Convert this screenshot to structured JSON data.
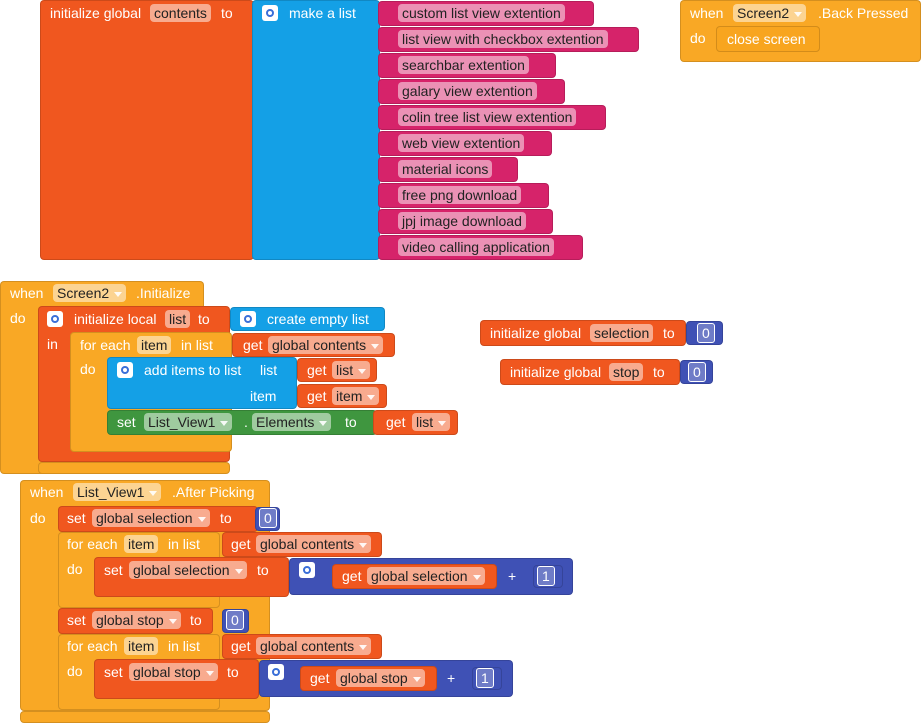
{
  "contents_block": {
    "keyword": "initialize global",
    "name": "contents",
    "to": "to",
    "list_keyword": "make a list",
    "items": [
      "custom list view extention",
      "list view with checkbox extention",
      "searchbar extention",
      "galary view extention",
      "colin tree list view extention",
      "web view extention",
      "material icons",
      "free png download",
      "jpj image download",
      "video calling application"
    ]
  },
  "back_pressed": {
    "when": "when",
    "component": "Screen2",
    "event": ".Back Pressed",
    "do": "do",
    "action": "close screen"
  },
  "screen_initialize": {
    "when": "when",
    "component": "Screen2",
    "event": ".Initialize",
    "do": "do",
    "local_keyword": "initialize local",
    "local_name": "list",
    "local_to": "to",
    "create": "create empty list",
    "in": "in",
    "for_each": "for each",
    "item_var": "item",
    "in_list": "in list",
    "get1": "get",
    "get1_var": "global contents",
    "loop_do": "do",
    "add_items": "add items to list",
    "list_socket": "list",
    "item_socket": "item",
    "get2": "get",
    "get2_var": "list",
    "get3": "get",
    "get3_var": "item",
    "set": "set",
    "set_component": "List_View1",
    "dot": ".",
    "set_property": "Elements",
    "set_to": "to",
    "get4": "get",
    "get4_var": "list"
  },
  "selection_block": {
    "keyword": "initialize global",
    "name": "selection",
    "to": "to",
    "value": 0
  },
  "stop_block": {
    "keyword": "initialize global",
    "name": "stop",
    "to": "to",
    "value": 0
  },
  "after_picking": {
    "when": "when",
    "component": "List_View1",
    "event": ".After Picking",
    "do": "do",
    "set1": "set",
    "set1_var": "global selection",
    "set1_to": "to",
    "set1_value": 0,
    "loop1_for_each": "for each",
    "loop1_item": "item",
    "loop1_in_list": "in list",
    "loop1_get": "get",
    "loop1_get_var": "global contents",
    "loop1_do": "do",
    "set2": "set",
    "set2_var": "global selection",
    "set2_to": "to",
    "set2_get": "get",
    "set2_get_var": "global selection",
    "set2_plus": "+",
    "set2_value": 1,
    "set3": "set",
    "set3_var": "global stop",
    "set3_to": "to",
    "set3_value": 0,
    "loop2_for_each": "for each",
    "loop2_item": "item",
    "loop2_in_list": "in list",
    "loop2_get": "get",
    "loop2_get_var": "global contents",
    "loop2_do": "do",
    "set4": "set",
    "set4_var": "global stop",
    "set4_to": "to",
    "set4_get": "get",
    "set4_get_var": "global stop",
    "set4_plus": "+",
    "set4_value": 1
  }
}
